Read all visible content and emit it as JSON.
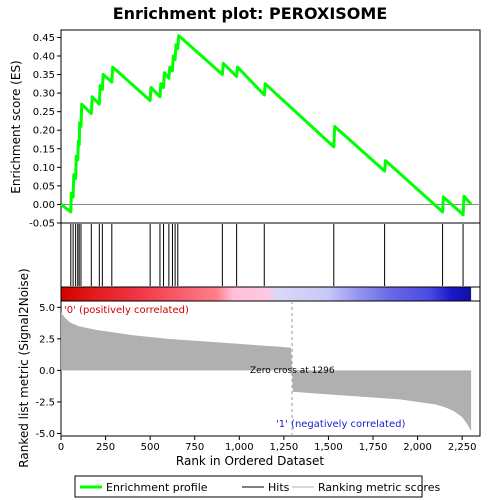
{
  "chart_data": {
    "type": "line",
    "title": "Enrichment plot: PEROXISOME",
    "es_panel": {
      "ylabel": "Enrichment score (ES)",
      "ylim": [
        -0.05,
        0.47
      ],
      "yticks": [
        -0.05,
        0.0,
        0.05,
        0.1,
        0.15,
        0.2,
        0.25,
        0.3,
        0.35,
        0.4,
        0.45
      ],
      "ytick_labels": [
        "-0.05",
        "0.00",
        "0.05",
        "0.10",
        "0.15",
        "0.20",
        "0.25",
        "0.30",
        "0.35",
        "0.40",
        "0.45"
      ],
      "line_color": "#00ff00",
      "points": [
        [
          0,
          0.0
        ],
        [
          55,
          -0.02
        ],
        [
          58,
          0.03
        ],
        [
          68,
          0.02
        ],
        [
          72,
          0.08
        ],
        [
          82,
          0.07
        ],
        [
          86,
          0.13
        ],
        [
          94,
          0.12
        ],
        [
          97,
          0.17
        ],
        [
          102,
          0.16
        ],
        [
          105,
          0.22
        ],
        [
          112,
          0.21
        ],
        [
          116,
          0.27
        ],
        [
          170,
          0.245
        ],
        [
          175,
          0.29
        ],
        [
          215,
          0.27
        ],
        [
          220,
          0.32
        ],
        [
          232,
          0.31
        ],
        [
          236,
          0.35
        ],
        [
          285,
          0.33
        ],
        [
          290,
          0.37
        ],
        [
          500,
          0.28
        ],
        [
          505,
          0.315
        ],
        [
          555,
          0.29
        ],
        [
          560,
          0.325
        ],
        [
          575,
          0.315
        ],
        [
          580,
          0.355
        ],
        [
          605,
          0.34
        ],
        [
          610,
          0.37
        ],
        [
          625,
          0.36
        ],
        [
          630,
          0.4
        ],
        [
          640,
          0.39
        ],
        [
          645,
          0.43
        ],
        [
          655,
          0.42
        ],
        [
          660,
          0.455
        ],
        [
          905,
          0.35
        ],
        [
          910,
          0.38
        ],
        [
          985,
          0.345
        ],
        [
          990,
          0.37
        ],
        [
          1140,
          0.295
        ],
        [
          1145,
          0.325
        ],
        [
          1530,
          0.155
        ],
        [
          1535,
          0.21
        ],
        [
          1815,
          0.09
        ],
        [
          1820,
          0.118
        ],
        [
          2140,
          -0.02
        ],
        [
          2145,
          0.02
        ],
        [
          2255,
          -0.028
        ],
        [
          2260,
          0.022
        ],
        [
          2300,
          0.0
        ]
      ]
    },
    "hits": [
      55,
      68,
      82,
      94,
      102,
      112,
      170,
      215,
      232,
      285,
      500,
      555,
      575,
      605,
      625,
      640,
      655,
      905,
      985,
      1140,
      1530,
      1815,
      2140,
      2255
    ],
    "metric_panel": {
      "ylabel": "Ranked list metric (Signal2Noise)",
      "ylim": [
        -5.2,
        5.5
      ],
      "yticks": [
        -5.0,
        -2.5,
        0.0,
        2.5,
        5.0
      ],
      "ytick_labels": [
        "-5.0",
        "-2.5",
        "0.0",
        "2.5",
        "5.0"
      ],
      "fill_color": "#b0b0b0",
      "profile": [
        [
          0,
          4.6
        ],
        [
          20,
          4.2
        ],
        [
          50,
          3.8
        ],
        [
          100,
          3.5
        ],
        [
          200,
          3.2
        ],
        [
          300,
          3.0
        ],
        [
          400,
          2.8
        ],
        [
          500,
          2.65
        ],
        [
          600,
          2.5
        ],
        [
          700,
          2.4
        ],
        [
          800,
          2.3
        ],
        [
          900,
          2.2
        ],
        [
          1000,
          2.1
        ],
        [
          1100,
          2.0
        ],
        [
          1200,
          1.9
        ],
        [
          1290,
          1.8
        ],
        [
          1296,
          0.0
        ],
        [
          1300,
          -1.7
        ],
        [
          1400,
          -1.8
        ],
        [
          1500,
          -1.9
        ],
        [
          1600,
          -2.0
        ],
        [
          1700,
          -2.1
        ],
        [
          1800,
          -2.2
        ],
        [
          1900,
          -2.3
        ],
        [
          2000,
          -2.5
        ],
        [
          2100,
          -2.7
        ],
        [
          2150,
          -2.9
        ],
        [
          2200,
          -3.2
        ],
        [
          2250,
          -3.7
        ],
        [
          2280,
          -4.3
        ],
        [
          2300,
          -4.8
        ]
      ],
      "zero_cross_label": "Zero cross at 1296",
      "zero_cross": 1296,
      "pos_label": "'0' (positively correlated)",
      "neg_label": "'1' (negatively correlated)"
    },
    "xlabel": "Rank in Ordered Dataset",
    "xlim": [
      0,
      2350
    ],
    "xticks": [
      0,
      250,
      500,
      750,
      1000,
      1250,
      1500,
      1750,
      2000,
      2250
    ],
    "xtick_labels": [
      "0",
      "250",
      "500",
      "750",
      "1,000",
      "1,250",
      "1,500",
      "1,750",
      "2,000",
      "2,250"
    ],
    "n_genes": 2300,
    "legend": {
      "placement": "bottom",
      "items": [
        {
          "label": "Enrichment profile",
          "color": "#00ff00",
          "style": "thick-line"
        },
        {
          "label": "Hits",
          "color": "#000000",
          "style": "line"
        },
        {
          "label": "Ranking metric scores",
          "color": "#b0b0b0",
          "style": "line"
        }
      ]
    },
    "colorbar": {
      "stops": [
        [
          0.0,
          "#d10000"
        ],
        [
          0.08,
          "#e21b1b"
        ],
        [
          0.2,
          "#f03a4a"
        ],
        [
          0.38,
          "#ff7f8a"
        ],
        [
          0.42,
          "#ffc0de"
        ],
        [
          0.5,
          "#ffc8e0"
        ],
        [
          0.53,
          "#d8d8f8"
        ],
        [
          0.65,
          "#c8c8f8"
        ],
        [
          0.72,
          "#9898f0"
        ],
        [
          0.8,
          "#6a6ae8"
        ],
        [
          0.9,
          "#4a4ae0"
        ],
        [
          0.95,
          "#1a1ad0"
        ],
        [
          1.0,
          "#1010a0"
        ]
      ]
    }
  }
}
